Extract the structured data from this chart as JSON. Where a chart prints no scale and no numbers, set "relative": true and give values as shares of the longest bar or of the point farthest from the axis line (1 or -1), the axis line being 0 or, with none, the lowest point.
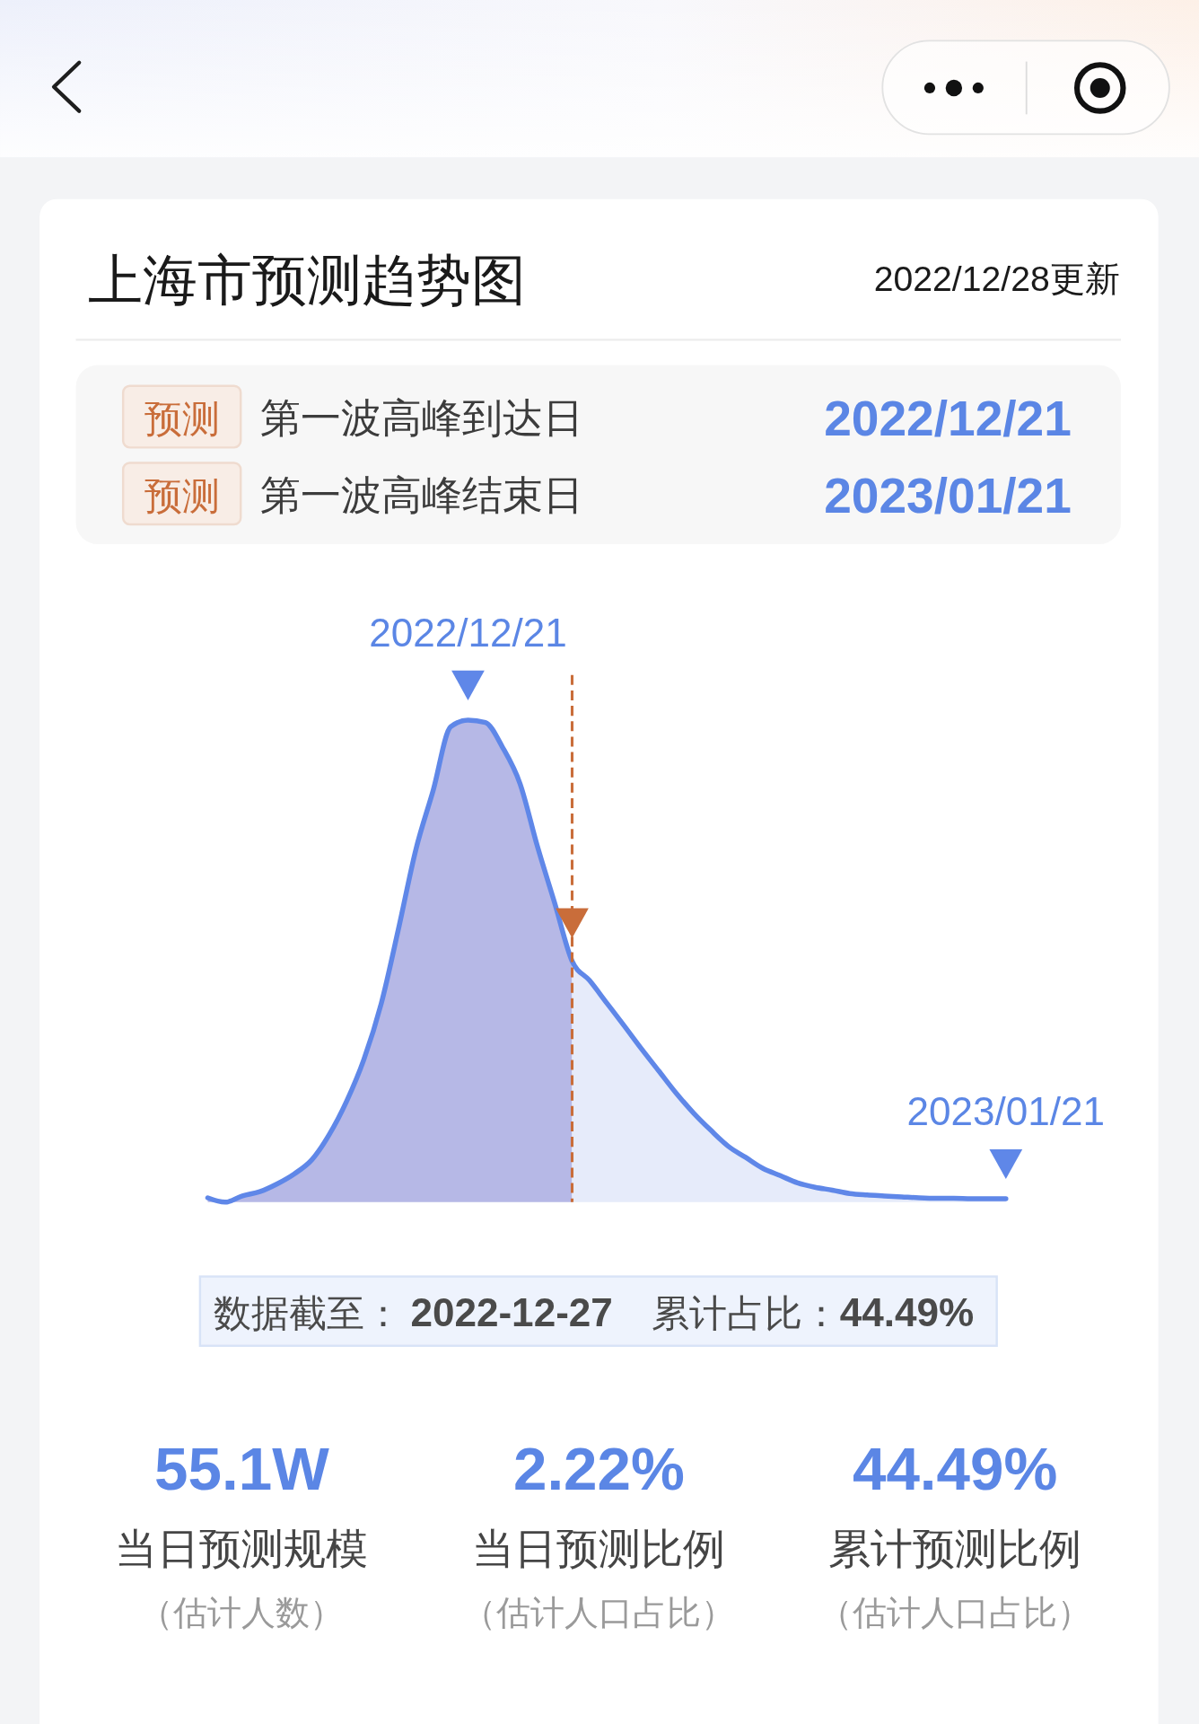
{
  "chart_data": {
    "type": "area",
    "title": "上海市预测趋势图",
    "subtitle": "2022/12/28更新",
    "relative": true,
    "categories": [
      null,
      null,
      null,
      null,
      null,
      null,
      null,
      null,
      null,
      null,
      null,
      null,
      null,
      null,
      null,
      null,
      null,
      null,
      null,
      null,
      null,
      null,
      null,
      null,
      null,
      null,
      null,
      null,
      null,
      null,
      null,
      null,
      null,
      null,
      null,
      null,
      null,
      null,
      null,
      null,
      null,
      null,
      null,
      null,
      null,
      null,
      null
    ],
    "series": [
      {
        "color": "#b6b8e6",
        "values": [
          0.009,
          0,
          0.013,
          0.022,
          0.038,
          0.059,
          0.088,
          0.14,
          0.209,
          0.296,
          0.412,
          0.568,
          0.732,
          0.855,
          0.986,
          1,
          0.995,
          0.943,
          0.868,
          0.738,
          0.62,
          0.5,
          null,
          null,
          null,
          null,
          null,
          null,
          null,
          null,
          null,
          null,
          null,
          null,
          null,
          null,
          null,
          null,
          null,
          null,
          null,
          null,
          null,
          null,
          null,
          null,
          null
        ]
      },
      {
        "color": "#e6ebfa",
        "values": [
          null,
          null,
          null,
          null,
          null,
          null,
          null,
          null,
          null,
          null,
          null,
          null,
          null,
          null,
          null,
          null,
          null,
          null,
          null,
          null,
          null,
          0.5,
          0.46,
          0.413,
          0.366,
          0.318,
          0.272,
          0.226,
          0.185,
          0.149,
          0.116,
          0.093,
          0.07,
          0.055,
          0.04,
          0.031,
          0.025,
          0.018,
          0.015,
          0.013,
          0.011,
          0.009,
          0.008,
          0.008,
          0.007,
          0.007,
          0.007
        ]
      },
      {
        "type": "line",
        "color": "#5f87e8",
        "values": [
          0.009,
          0,
          0.013,
          0.022,
          0.038,
          0.059,
          0.088,
          0.14,
          0.209,
          0.296,
          0.412,
          0.568,
          0.732,
          0.855,
          0.986,
          1,
          0.995,
          0.943,
          0.868,
          0.738,
          0.62,
          0.5,
          0.46,
          0.413,
          0.366,
          0.318,
          0.272,
          0.226,
          0.185,
          0.149,
          0.116,
          0.093,
          0.07,
          0.055,
          0.04,
          0.031,
          0.025,
          0.018,
          0.015,
          0.013,
          0.011,
          0.009,
          0.008,
          0.008,
          0.007,
          0.007,
          0.007
        ]
      }
    ],
    "annotations": [
      {
        "text": "2022/12/21",
        "y": 1
      },
      {
        "text": "2023/01/21",
        "y": 0.007
      },
      "预测",
      "第一波高峰到达日",
      "2022/12/21",
      "预测",
      "第一波高峰结束日",
      "2023/01/21",
      "数据截至：",
      "2022-12-27",
      "累计占比：",
      "44.49%",
      "55.1W",
      "当日预测规模",
      "（估计人数）",
      "2.22%",
      "当日预测比例",
      "（估计人口占比）",
      "44.49%",
      "累计预测比例",
      "（估计人口占比）"
    ]
  }
}
